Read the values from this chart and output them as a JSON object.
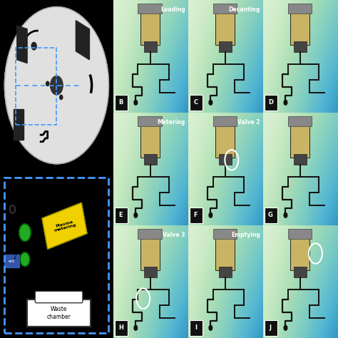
{
  "figure_bg": "#000000",
  "disk_color": "#e0e0e0",
  "disk_edge": "#aaaaaa",
  "diag_bg": "#e8eef4",
  "diag_border": "#4499ff",
  "photo_bg": "#8ab0c0",
  "plasma_color": "#f0d000",
  "dot_color": "#22aa22",
  "dot_edge": "#005500",
  "waste_color": "#ffffff",
  "line_color": "#222222",
  "photo_titles": {
    "0,0": "Loading",
    "0,1": "Decanting",
    "0,2": null,
    "1,0": "Metering",
    "1,1": "Valve 2",
    "1,2": null,
    "2,0": "Valve 3",
    "2,1": "Emptying",
    "2,2": null
  },
  "photo_letters": {
    "0,0": "B",
    "0,1": "C",
    "0,2": "D",
    "1,0": "E",
    "1,1": "F",
    "1,2": "G",
    "2,0": "H",
    "2,1": "I",
    "2,2": "J"
  },
  "circle_cells": {
    "1,1": [
      0.58,
      0.58
    ],
    "2,0": [
      0.4,
      0.35
    ],
    "2,2": [
      0.7,
      0.75
    ]
  }
}
